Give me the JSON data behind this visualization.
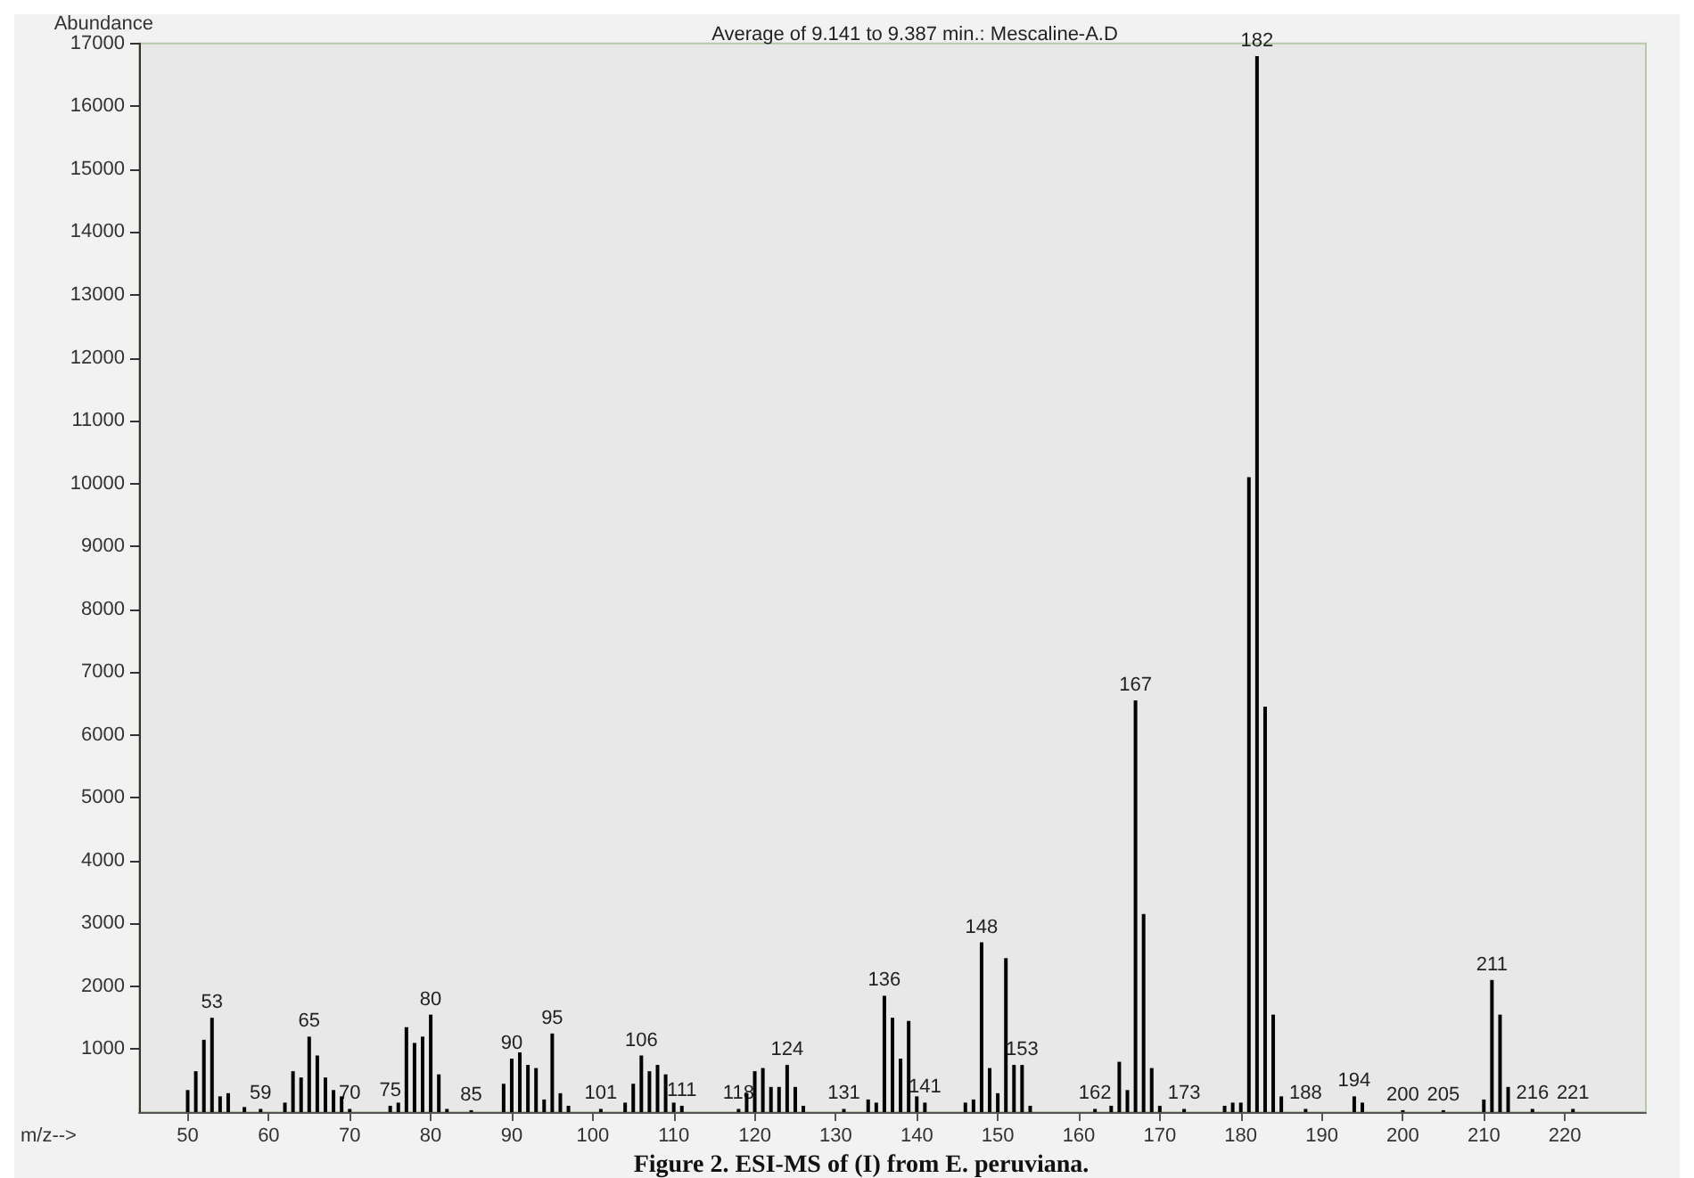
{
  "chart_data": {
    "type": "bar",
    "title": "Average of 9.141 to 9.387 min.: Mescaline-A.D",
    "xlabel": "m/z-->",
    "ylabel": "Abundance",
    "x": [
      50,
      51,
      52,
      53,
      54,
      55,
      57,
      59,
      62,
      63,
      64,
      65,
      66,
      67,
      68,
      69,
      70,
      75,
      76,
      77,
      78,
      79,
      80,
      81,
      82,
      85,
      89,
      90,
      91,
      92,
      93,
      94,
      95,
      96,
      97,
      101,
      104,
      105,
      106,
      107,
      108,
      109,
      110,
      111,
      118,
      119,
      120,
      121,
      122,
      123,
      124,
      125,
      126,
      131,
      134,
      135,
      136,
      137,
      138,
      139,
      140,
      141,
      146,
      147,
      148,
      149,
      150,
      151,
      152,
      153,
      154,
      162,
      164,
      165,
      166,
      167,
      168,
      169,
      170,
      173,
      178,
      179,
      180,
      181,
      182,
      183,
      184,
      185,
      188,
      194,
      195,
      200,
      205,
      210,
      211,
      212,
      213,
      216,
      221
    ],
    "values": [
      350,
      650,
      1150,
      1500,
      250,
      300,
      80,
      50,
      150,
      650,
      550,
      1200,
      900,
      550,
      350,
      250,
      50,
      100,
      150,
      1350,
      1100,
      1200,
      1550,
      600,
      50,
      30,
      450,
      850,
      950,
      750,
      700,
      200,
      1250,
      300,
      100,
      50,
      150,
      450,
      900,
      650,
      750,
      600,
      150,
      100,
      50,
      300,
      650,
      700,
      400,
      400,
      750,
      400,
      100,
      50,
      200,
      150,
      1850,
      1500,
      850,
      1450,
      250,
      150,
      150,
      200,
      2700,
      700,
      300,
      2450,
      750,
      750,
      100,
      50,
      100,
      800,
      350,
      6550,
      3150,
      700,
      100,
      50,
      100,
      150,
      150,
      10100,
      16800,
      6450,
      1550,
      250,
      50,
      250,
      150,
      30,
      30,
      200,
      2100,
      1550,
      400,
      50,
      50
    ],
    "color": "#000000",
    "xlim": [
      44,
      230
    ],
    "xticks": [
      50,
      60,
      70,
      80,
      90,
      100,
      110,
      120,
      130,
      140,
      150,
      160,
      170,
      180,
      190,
      200,
      210,
      220
    ],
    "ylim": [
      0,
      17000
    ],
    "yticks": [
      1000,
      2000,
      3000,
      4000,
      5000,
      6000,
      7000,
      8000,
      9000,
      10000,
      11000,
      12000,
      13000,
      14000,
      15000,
      16000,
      17000
    ],
    "grid": false,
    "annotations": [
      {
        "text": "53",
        "x": 53,
        "y": 1500
      },
      {
        "text": "59",
        "x": 59,
        "y": 50
      },
      {
        "text": "65",
        "x": 65,
        "y": 1200
      },
      {
        "text": "70",
        "x": 70,
        "y": 50
      },
      {
        "text": "75",
        "x": 75,
        "y": 100
      },
      {
        "text": "80",
        "x": 80,
        "y": 1550
      },
      {
        "text": "85",
        "x": 85,
        "y": 30
      },
      {
        "text": "90",
        "x": 90,
        "y": 850
      },
      {
        "text": "95",
        "x": 95,
        "y": 1250
      },
      {
        "text": "101",
        "x": 101,
        "y": 50
      },
      {
        "text": "106",
        "x": 106,
        "y": 900
      },
      {
        "text": "111",
        "x": 111,
        "y": 100
      },
      {
        "text": "118",
        "x": 118,
        "y": 50
      },
      {
        "text": "124",
        "x": 124,
        "y": 750
      },
      {
        "text": "131",
        "x": 131,
        "y": 50
      },
      {
        "text": "136",
        "x": 136,
        "y": 1850
      },
      {
        "text": "141",
        "x": 141,
        "y": 150
      },
      {
        "text": "148",
        "x": 148,
        "y": 2700
      },
      {
        "text": "153",
        "x": 153,
        "y": 750
      },
      {
        "text": "162",
        "x": 162,
        "y": 50
      },
      {
        "text": "167",
        "x": 167,
        "y": 6550
      },
      {
        "text": "173",
        "x": 173,
        "y": 50
      },
      {
        "text": "182",
        "x": 182,
        "y": 16800
      },
      {
        "text": "188",
        "x": 188,
        "y": 50
      },
      {
        "text": "194",
        "x": 194,
        "y": 250
      },
      {
        "text": "200",
        "x": 200,
        "y": 30
      },
      {
        "text": "205",
        "x": 205,
        "y": 30
      },
      {
        "text": "211",
        "x": 211,
        "y": 2100
      },
      {
        "text": "216",
        "x": 216,
        "y": 50
      },
      {
        "text": "221",
        "x": 221,
        "y": 50
      },
      "Figure 2. ESI-MS of (I) from E. peruviana."
    ]
  }
}
